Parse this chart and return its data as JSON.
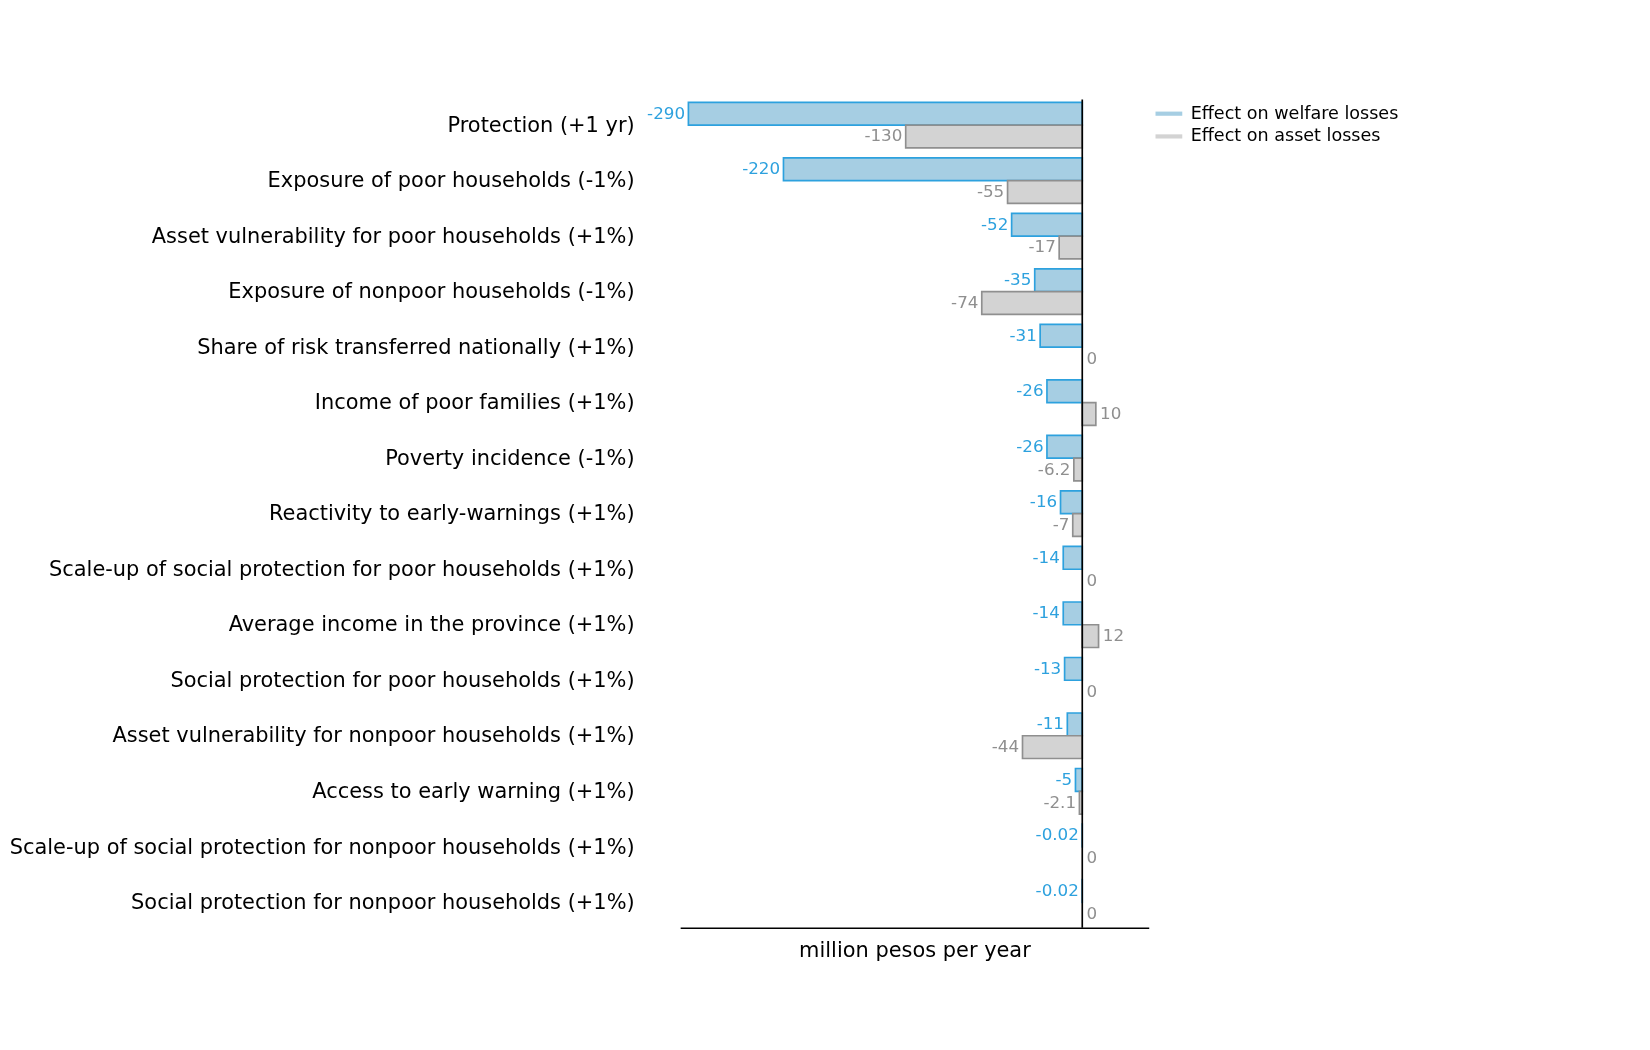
{
  "chart_data": {
    "type": "bar",
    "orientation": "horizontal",
    "xlabel": "million pesos per year",
    "categories": [
      "Protection (+1 yr)",
      "Exposure of poor households (-1%)",
      "Asset vulnerability for poor households (+1%)",
      "Exposure of nonpoor households (-1%)",
      "Share of risk transferred nationally (+1%)",
      "Income of poor families (+1%)",
      "Poverty incidence (-1%)",
      "Reactivity to early-warnings (+1%)",
      "Scale-up of social protection for poor households (+1%)",
      "Average income in the province (+1%)",
      "Social protection for poor households (+1%)",
      "Asset vulnerability for nonpoor households (+1%)",
      "Access to early warning (+1%)",
      "Scale-up of social protection for nonpoor households (+1%)",
      "Social protection for nonpoor households (+1%)"
    ],
    "series": [
      {
        "name": "Effect on welfare losses",
        "color": "#a6cee3",
        "values": [
          -290,
          -220,
          -52,
          -35,
          -31,
          -26,
          -26,
          -16,
          -14,
          -14,
          -13,
          -11,
          -5,
          -0.02,
          -0.02
        ]
      },
      {
        "name": "Effect on asset losses",
        "color": "#d3d3d3",
        "values": [
          -130,
          -55,
          -17,
          -74,
          0,
          10,
          -6.2,
          -7,
          0,
          12,
          0,
          -44,
          -2.1,
          0,
          0
        ]
      }
    ],
    "xlim": [
      -296,
      49
    ],
    "tick_labels": "y",
    "data_labels": true,
    "grid": false,
    "legend": "top right"
  }
}
